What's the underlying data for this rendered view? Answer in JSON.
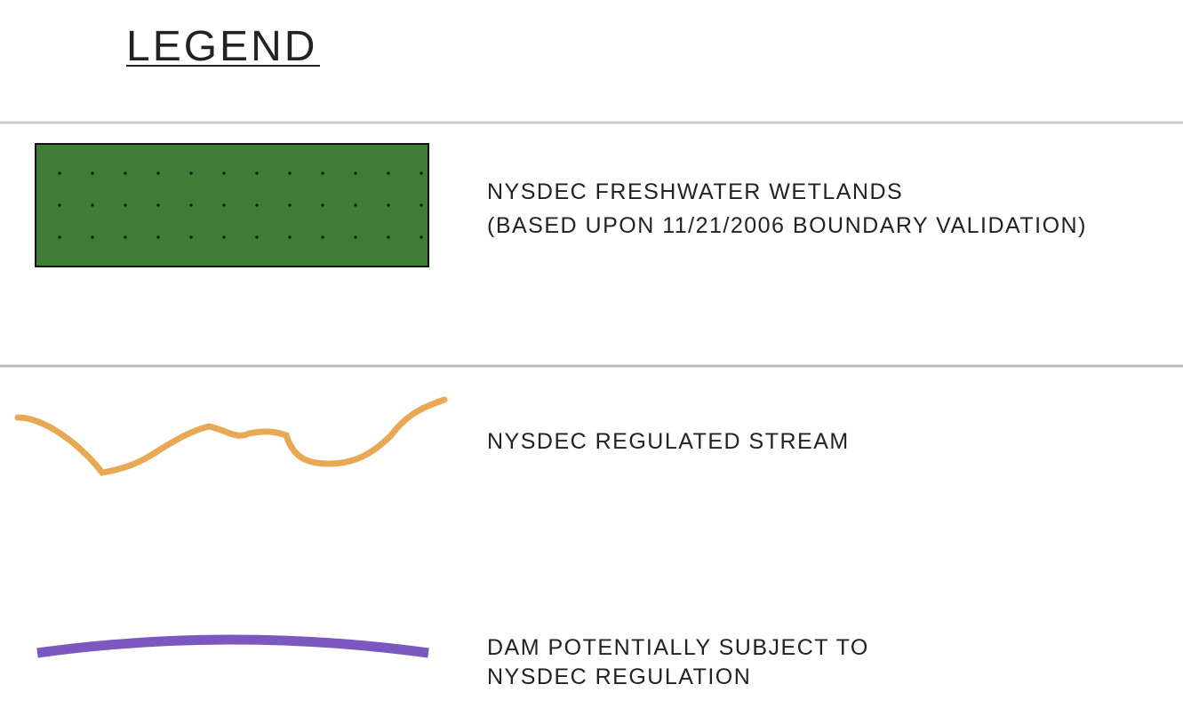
{
  "header": {
    "title": "LEGEND"
  },
  "items": [
    {
      "lines": [
        "NYSDEC FRESHWATER WETLANDS",
        "(BASED UPON 11/21/2006 BOUNDARY VALIDATION)"
      ]
    },
    {
      "lines": [
        "NYSDEC REGULATED STREAM"
      ]
    },
    {
      "lines": [
        "DAM POTENTIALLY SUBJECT TO",
        "NYSDEC REGULATION"
      ]
    }
  ]
}
